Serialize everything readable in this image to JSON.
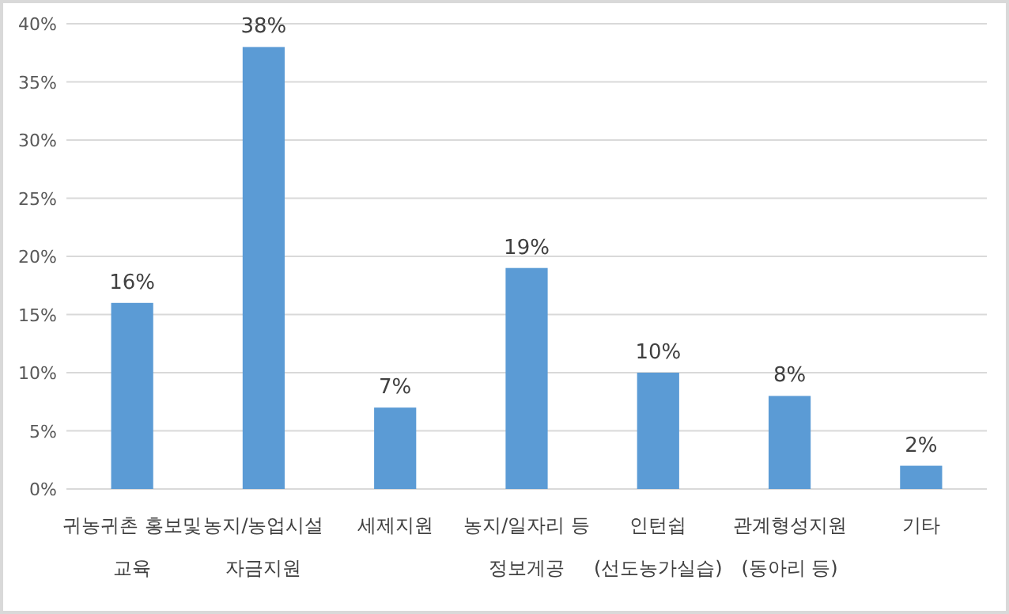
{
  "chart_data": {
    "type": "bar",
    "categories": [
      "귀농귀촌 홍보및\n교육",
      "농지/농업시설\n자금지원",
      "세제지원",
      "농지/일자리 등\n정보게공",
      "인턴쉽\n(선도농가실습)",
      "관계형성지원\n(동아리 등)",
      "기타"
    ],
    "values": [
      16,
      38,
      7,
      19,
      10,
      8,
      2
    ],
    "value_labels": [
      "16%",
      "38%",
      "7%",
      "19%",
      "10%",
      "8%",
      "2%"
    ],
    "color": "#5b9bd5",
    "ylim": [
      0,
      40
    ],
    "yticks": [
      {
        "value": 0,
        "label": "0%"
      },
      {
        "value": 5,
        "label": "5%"
      },
      {
        "value": 10,
        "label": "10%"
      },
      {
        "value": 15,
        "label": "15%"
      },
      {
        "value": 20,
        "label": "20%"
      },
      {
        "value": 25,
        "label": "25%"
      },
      {
        "value": 30,
        "label": "30%"
      },
      {
        "value": 35,
        "label": "35%"
      },
      {
        "value": 40,
        "label": "40%"
      }
    ],
    "grid": "y"
  }
}
